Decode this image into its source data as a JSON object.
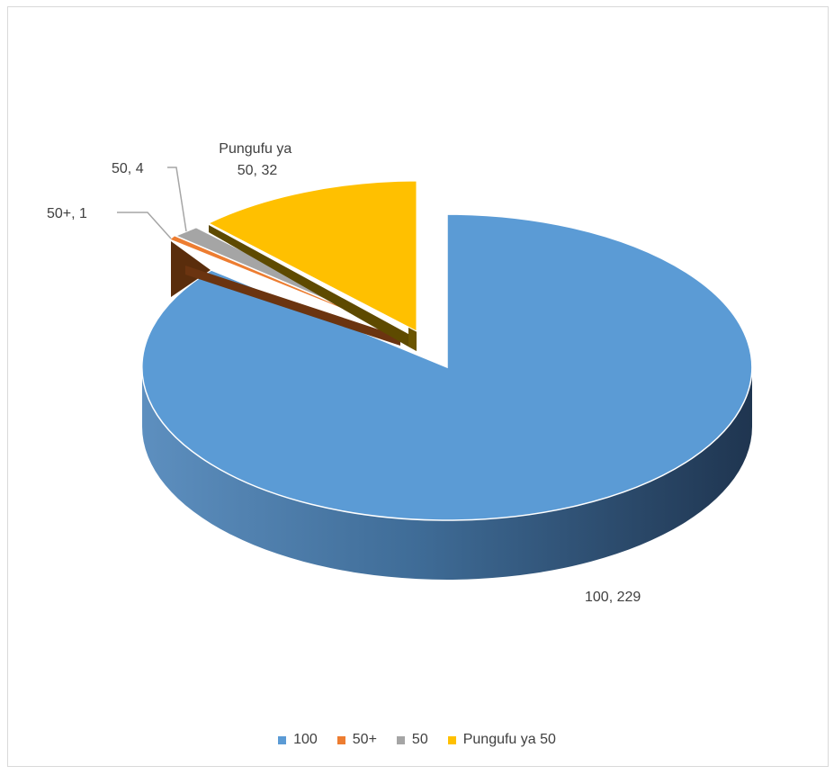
{
  "chart_data": {
    "type": "pie",
    "title": "",
    "three_d": true,
    "categories": [
      "100",
      "50+",
      "50",
      "Pungufu ya 50"
    ],
    "values": [
      229,
      1,
      4,
      32
    ],
    "colors": [
      "#5b9bd5",
      "#ed7d31",
      "#a5a5a5",
      "#ffc000"
    ],
    "data_labels": [
      "100, 229",
      "50+, 1",
      "50, 4",
      "Pungufu ya 50, 32"
    ],
    "legend_position": "bottom"
  }
}
